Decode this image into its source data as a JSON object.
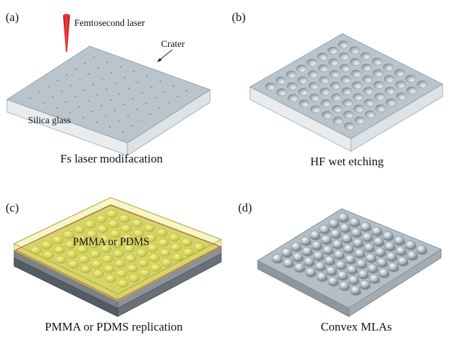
{
  "panels": [
    {
      "tag": "(a)",
      "caption": "Fs laser modifacation",
      "labels": {
        "laser": "Femtosecond laser",
        "crater": "Crater",
        "substrate": "Silica glass"
      }
    },
    {
      "tag": "(b)",
      "caption": "HF wet etching"
    },
    {
      "tag": "(c)",
      "caption": "PMMA or PDMS replication",
      "labels": {
        "layer": "PMMA or PDMS"
      }
    },
    {
      "tag": "(d)",
      "caption": "Convex MLAs"
    }
  ],
  "colors": {
    "slab_top": "#b9c4cc",
    "slab_side": "#d7dde2",
    "glass_side": "#e9edf0",
    "laser": "#d81e1e",
    "polymer": "#e0de6a",
    "polymer_edge": "#b8b43a",
    "dark_base": "#4a4f55"
  },
  "icons": [
    "laser-cone-icon",
    "crater-arrow-icon"
  ]
}
